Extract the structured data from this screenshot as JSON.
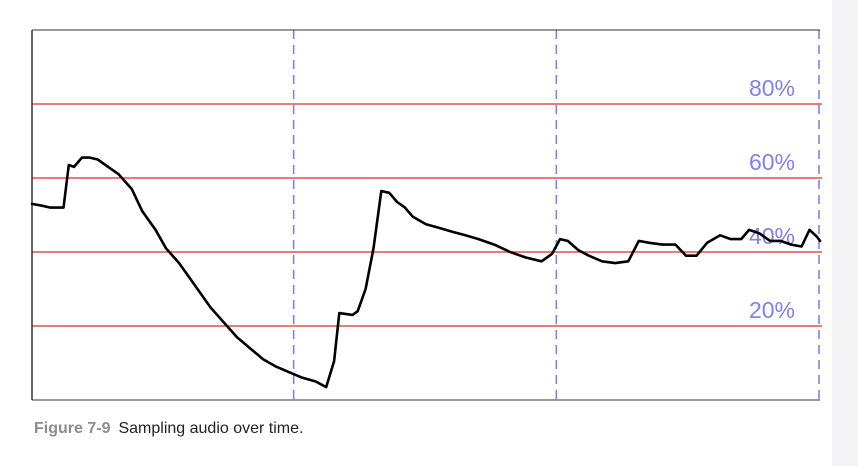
{
  "chart_data": {
    "type": "line",
    "xlim": [
      0,
      3
    ],
    "ylim": [
      0,
      100
    ],
    "x_gridlines": [
      1,
      2,
      3
    ],
    "y_gridlines": [
      20,
      40,
      60,
      80
    ],
    "tick_labels": [
      {
        "value": 80,
        "label": "80%"
      },
      {
        "value": 60,
        "label": "60%"
      },
      {
        "value": 40,
        "label": "40%"
      },
      {
        "value": 20,
        "label": "20%"
      }
    ],
    "colors": {
      "line": "#000000",
      "horizontal_grid": "#e05050",
      "vertical_grid": "#8080ee",
      "tick_label": "#8080ee",
      "axis": "#333333"
    },
    "legend": "none",
    "series": [
      {
        "points": [
          [
            0.0,
            53.0
          ],
          [
            0.04,
            52.5
          ],
          [
            0.07,
            52.0
          ],
          [
            0.12,
            52.0
          ],
          [
            0.14,
            63.5
          ],
          [
            0.16,
            63.0
          ],
          [
            0.19,
            65.5
          ],
          [
            0.22,
            65.5
          ],
          [
            0.25,
            65.0
          ],
          [
            0.29,
            63.0
          ],
          [
            0.33,
            61.0
          ],
          [
            0.38,
            57.0
          ],
          [
            0.42,
            51.0
          ],
          [
            0.47,
            46.0
          ],
          [
            0.51,
            41.0
          ],
          [
            0.56,
            37.0
          ],
          [
            0.6,
            33.0
          ],
          [
            0.64,
            29.0
          ],
          [
            0.68,
            25.0
          ],
          [
            0.73,
            21.0
          ],
          [
            0.78,
            17.0
          ],
          [
            0.83,
            14.0
          ],
          [
            0.88,
            11.0
          ],
          [
            0.93,
            9.0
          ],
          [
            0.98,
            7.5
          ],
          [
            1.03,
            6.0
          ],
          [
            1.08,
            5.0
          ],
          [
            1.12,
            3.5
          ],
          [
            1.15,
            10.5
          ],
          [
            1.17,
            23.5
          ],
          [
            1.22,
            23.0
          ],
          [
            1.24,
            24.0
          ],
          [
            1.27,
            30.0
          ],
          [
            1.3,
            41.0
          ],
          [
            1.33,
            56.5
          ],
          [
            1.36,
            56.0
          ],
          [
            1.39,
            53.5
          ],
          [
            1.42,
            52.0
          ],
          [
            1.45,
            49.5
          ],
          [
            1.5,
            47.5
          ],
          [
            1.55,
            46.5
          ],
          [
            1.6,
            45.5
          ],
          [
            1.65,
            44.5
          ],
          [
            1.7,
            43.5
          ],
          [
            1.76,
            42.0
          ],
          [
            1.82,
            40.0
          ],
          [
            1.88,
            38.5
          ],
          [
            1.94,
            37.5
          ],
          [
            1.98,
            39.5
          ],
          [
            2.01,
            43.5
          ],
          [
            2.04,
            43.0
          ],
          [
            2.08,
            40.5
          ],
          [
            2.12,
            39.0
          ],
          [
            2.17,
            37.5
          ],
          [
            2.22,
            37.0
          ],
          [
            2.27,
            37.5
          ],
          [
            2.31,
            43.0
          ],
          [
            2.35,
            42.5
          ],
          [
            2.4,
            42.0
          ],
          [
            2.45,
            42.0
          ],
          [
            2.49,
            39.0
          ],
          [
            2.53,
            39.0
          ],
          [
            2.57,
            42.5
          ],
          [
            2.62,
            44.5
          ],
          [
            2.66,
            43.5
          ],
          [
            2.7,
            43.5
          ],
          [
            2.73,
            46.0
          ],
          [
            2.77,
            45.0
          ],
          [
            2.81,
            43.0
          ],
          [
            2.85,
            43.0
          ],
          [
            2.89,
            42.0
          ],
          [
            2.93,
            41.5
          ],
          [
            2.96,
            46.0
          ],
          [
            2.99,
            44.0
          ],
          [
            3.0,
            43.0
          ]
        ]
      }
    ]
  },
  "caption": {
    "figure_number": "Figure 7-9",
    "text": "Sampling audio over time."
  }
}
